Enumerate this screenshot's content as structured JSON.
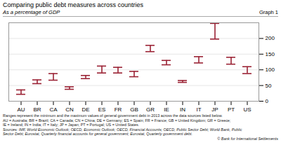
{
  "chart_data": {
    "type": "range",
    "title": "Comparing public debt measures across countries",
    "subtitle": "As a percentage of GDP",
    "annotations": [
      "Graph 1",
      "Ranges represent the minimum and the maximum values of general government debt in 2013 across the data sources listed below.\nAU = Australia; BR = Brazil; CA = Canada; CN = China; DE = Germany; ES = Spain; FR = France; GB = United Kingdom; GR = Greece;\nIE = Ireland; IN = India; IT = Italy; JP = Japan; PT = Portugal; US = United States.",
      "Sources: IMF, World Economic Outlook; OECD, Economic Outlook; OECD, Financial Accounts; OECD, Public Sector Debt; World Bank, Public\nSector Debt; Eurostat, Quarterly financial accounts for general government; Eurostat, Quarterly government debt.",
      "© Bank for International Settlements"
    ],
    "categories": [
      "AU",
      "BR",
      "CA",
      "CN",
      "DE",
      "ES",
      "FR",
      "GB",
      "GR",
      "IE",
      "IN",
      "IT",
      "JP",
      "PT",
      "US"
    ],
    "low": [
      22,
      56,
      67,
      38,
      72,
      90,
      90,
      78,
      158,
      116,
      60,
      122,
      198,
      118,
      88
    ],
    "high": [
      36,
      68,
      88,
      46,
      82,
      112,
      108,
      95,
      178,
      130,
      66,
      142,
      248,
      140,
      110
    ],
    "color": "#9B2335",
    "ylim": [
      0,
      250
    ],
    "yticks": [
      0,
      50,
      100,
      150,
      200
    ],
    "grid": true
  }
}
